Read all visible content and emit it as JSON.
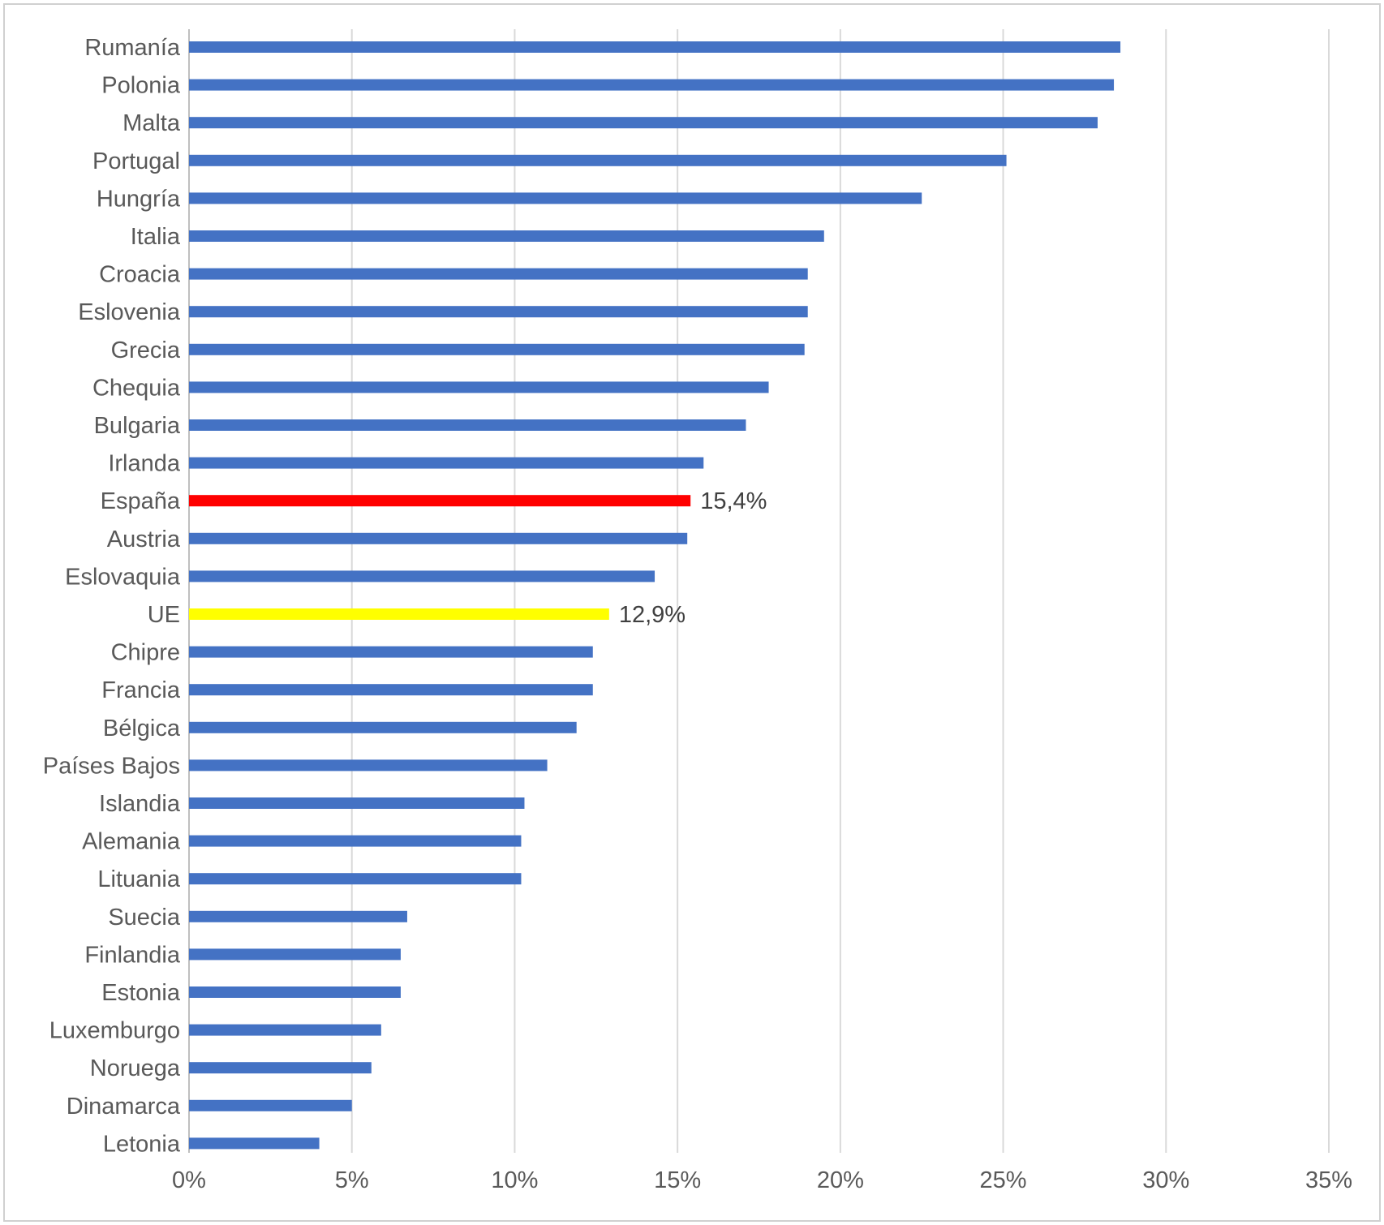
{
  "chart_data": {
    "type": "bar",
    "orientation": "horizontal",
    "title": "",
    "xlabel": "",
    "ylabel": "",
    "xlim": [
      0,
      35
    ],
    "x_ticks": [
      0,
      5,
      10,
      15,
      20,
      25,
      30,
      35
    ],
    "x_tick_labels": [
      "0%",
      "5%",
      "10%",
      "15%",
      "20%",
      "25%",
      "30%",
      "35%"
    ],
    "grid": "vertical",
    "legend": "none",
    "default_color": "#4472C4",
    "categories": [
      "Rumanía",
      "Polonia",
      "Malta",
      "Portugal",
      "Hungría",
      "Italia",
      "Croacia",
      "Eslovenia",
      "Grecia",
      "Chequia",
      "Bulgaria",
      "Irlanda",
      "España",
      "Austria",
      "Eslovaquia",
      "UE",
      "Chipre",
      "Francia",
      "Bélgica",
      "Países Bajos",
      "Islandia",
      "Alemania",
      "Lituania",
      "Suecia",
      "Finlandia",
      "Estonia",
      "Luxemburgo",
      "Noruega",
      "Dinamarca",
      "Letonia"
    ],
    "values": [
      28.6,
      28.4,
      27.9,
      25.1,
      22.5,
      19.5,
      19.0,
      19.0,
      18.9,
      17.8,
      17.1,
      15.8,
      15.4,
      15.3,
      14.3,
      12.9,
      12.4,
      12.4,
      11.9,
      11.0,
      10.3,
      10.2,
      10.2,
      6.7,
      6.5,
      6.5,
      5.9,
      5.6,
      5.0,
      4.0
    ],
    "highlights": [
      {
        "category": "España",
        "color": "#FF0000",
        "label": "15,4%"
      },
      {
        "category": "UE",
        "color": "#FFFF00",
        "label": "12,9%"
      }
    ]
  }
}
